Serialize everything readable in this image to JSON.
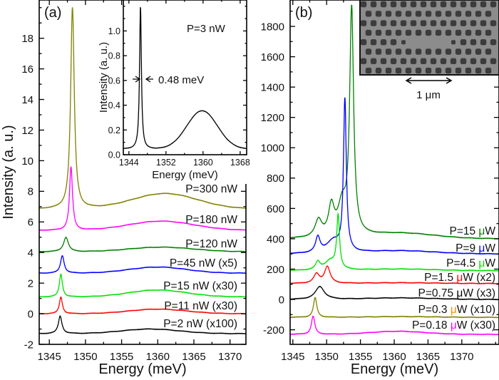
{
  "chart_data": [
    {
      "panel_label": "(a)",
      "type": "line",
      "xlabel": "Energy (meV)",
      "ylabel": "Intensity (a. u.)",
      "xlim": [
        1343.6,
        1372.2
      ],
      "ylim": [
        -2,
        20.5
      ],
      "xticks": [
        1345,
        1350,
        1355,
        1360,
        1365,
        1370
      ],
      "yticks": [
        -2,
        0,
        2,
        4,
        6,
        8,
        10,
        12,
        14,
        16,
        18
      ],
      "grid": false,
      "series": [
        {
          "name": "P=300 nW",
          "color": "#808000",
          "offset": 6.85,
          "peaks": [
            [
              1348.2,
              13.15,
              0.6
            ]
          ],
          "band": [
            1361,
            1.0,
            4.5
          ]
        },
        {
          "name": "P=180 nW",
          "color": "#ff00ff",
          "offset": 5.45,
          "peaks": [
            [
              1348.0,
              4.15,
              0.5
            ]
          ],
          "band": [
            1360.5,
            0.6,
            4.5
          ]
        },
        {
          "name": "P=120 nW",
          "color": "#007f00",
          "offset": 4.05,
          "peaks": [
            [
              1347.3,
              0.95,
              0.8
            ]
          ],
          "band": [
            1360.5,
            0.3,
            4.5
          ]
        },
        {
          "name": "P=45 nW (x5)",
          "color": "#0000ff",
          "offset": 2.65,
          "peaks": [
            [
              1346.8,
              1.15,
              0.6
            ]
          ],
          "band": [
            1360,
            0.4,
            4
          ]
        },
        {
          "name": "P=15 nW (x30)",
          "color": "#00e000",
          "offset": 1.1,
          "peaks": [
            [
              1346.6,
              1.5,
              0.5
            ]
          ],
          "band": [
            1360,
            0.45,
            4
          ]
        },
        {
          "name": "P=11 nW (x30)",
          "color": "#ff0000",
          "offset": 0,
          "peaks": [
            [
              1346.6,
              1.1,
              0.5
            ]
          ],
          "band": [
            1360,
            0.3,
            4
          ]
        },
        {
          "name": "P=2 nW (x100)",
          "color": "#000000",
          "offset": -1.3,
          "peaks": [
            [
              1346.5,
              1.15,
              0.6
            ]
          ],
          "band": [
            1359,
            0.3,
            4
          ]
        }
      ],
      "inset": {
        "type": "line",
        "xlabel": "Energy (meV)",
        "ylabel": "Intensity (a. u.)",
        "xlim": [
          1342.8,
          1369.4
        ],
        "ylim": [
          0,
          1.25
        ],
        "xticks": [
          1344,
          1352,
          1360,
          1368
        ],
        "yticks": [
          "0.0",
          "0.2",
          "0.4",
          "0.6",
          "0.8",
          "1.0"
        ],
        "annotation": "P=3 nW",
        "linewidth_annotation": "0.48 meV",
        "series": [
          {
            "color": "#000000",
            "offset": 0.045,
            "peaks": [
              [
                1346.5,
                1.15,
                0.48
              ]
            ],
            "band": [
              1359.8,
              0.31,
              3.3
            ]
          }
        ]
      }
    },
    {
      "panel_label": "(b)",
      "type": "line",
      "xlabel": "Energy (meV)",
      "ylabel": "",
      "xlim": [
        1344.6,
        1375.5
      ],
      "ylim": [
        -296,
        1974
      ],
      "xticks": [
        1345,
        1350,
        1355,
        1360,
        1365,
        1370
      ],
      "yticks": [
        -200,
        0,
        200,
        400,
        600,
        800,
        1000,
        1200,
        1400,
        1600,
        1800
      ],
      "grid": false,
      "series": [
        {
          "name": {
            "pre": "P=15 ",
            "mu": "μ",
            "post": "W"
          },
          "color": "#007f00",
          "offset": 400,
          "peaks": [
            [
              1353.7,
              1480,
              0.7
            ],
            [
              1348.8,
              110,
              1.2
            ],
            [
              1350.7,
              190,
              1.0
            ],
            [
              1352.3,
              200,
              1.5
            ]
          ],
          "band": [
            1361,
            35,
            5
          ]
        },
        {
          "name": {
            "pre": "P=9 ",
            "mu": "μ",
            "post": "W"
          },
          "color": "#0000ff",
          "offset": 300,
          "peaks": [
            [
              1352.7,
              1000,
              0.5
            ],
            [
              1348.7,
              100,
              0.8
            ],
            [
              1351,
              80,
              2.5
            ]
          ],
          "band": [
            1361,
            20,
            5
          ]
        },
        {
          "name": {
            "pre": "P=4.5 ",
            "mu": "μ",
            "post": "W"
          },
          "color": "#00e000",
          "offset": 190,
          "peaks": [
            [
              1351.7,
              350,
              0.5
            ],
            [
              1348.7,
              50,
              0.8
            ],
            [
              1350.5,
              60,
              2
            ]
          ],
          "band": [
            1361,
            10,
            5
          ]
        },
        {
          "name": {
            "pre": "P=1.5 ",
            "mu": "μ",
            "post": "W (x2)"
          },
          "color": "#ff0000",
          "offset": 105,
          "peaks": [
            [
              1350.1,
              110,
              1.0
            ],
            [
              1348.5,
              60,
              1.0
            ]
          ],
          "band": [
            1361,
            5,
            5
          ]
        },
        {
          "name": {
            "pre": "P=0.75 ",
            "mu": "μ",
            "post": "W (x3)"
          },
          "color": "#000000",
          "offset": 0,
          "peaks": [
            [
              1349,
              85,
              1.6
            ]
          ],
          "band": [
            1361,
            10,
            5
          ]
        },
        {
          "name": {
            "pre": "P=0.3 ",
            "mu": "μ",
            "post": "W (x10)"
          },
          "color": "#808000",
          "mu_color": "#ff8c00",
          "offset": -118,
          "peaks": [
            [
              1348.3,
              130,
              0.6
            ]
          ],
          "band": [
            1361,
            5,
            5
          ]
        },
        {
          "name": {
            "pre": "P=0.18 ",
            "mu": "μ",
            "post": "W (x30)"
          },
          "color": "#ff00ff",
          "offset": -230,
          "peaks": [
            [
              1348,
              120,
              0.6
            ]
          ],
          "band": [
            1360.5,
            20,
            4
          ]
        }
      ],
      "inset": {
        "type": "image",
        "description_icon": "sem-photonic-crystal-image",
        "scale_bar": "1 μm"
      }
    }
  ]
}
